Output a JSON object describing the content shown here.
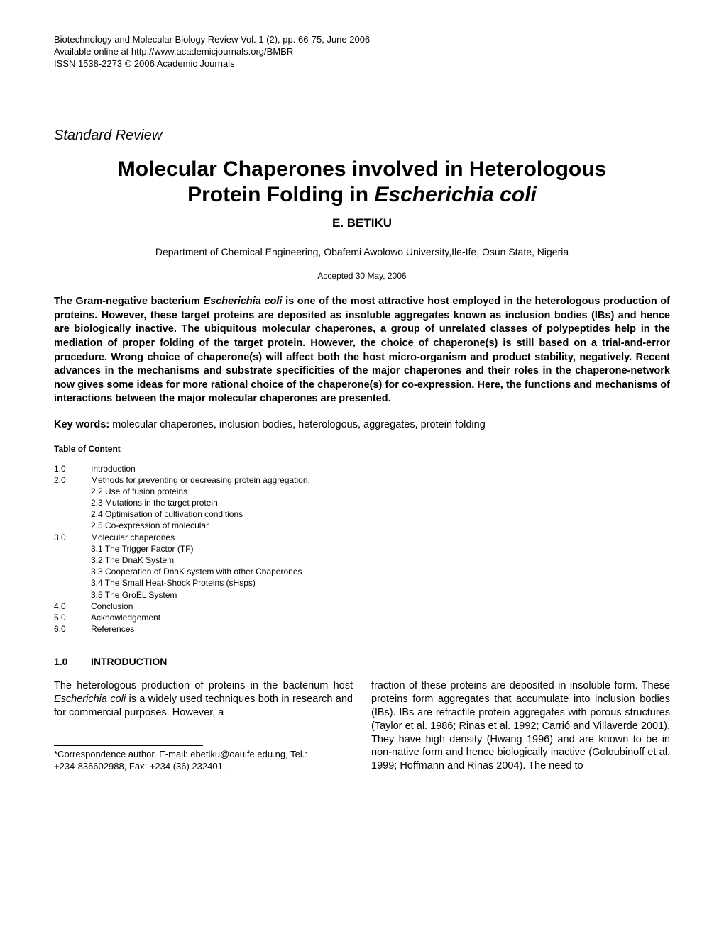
{
  "header": {
    "line1": "Biotechnology and Molecular Biology Review Vol. 1 (2), pp. 66-75, June 2006",
    "line2": "Available online at http://www.academicjournals.org/BMBR",
    "line3": "ISSN 1538-2273 © 2006 Academic Journals"
  },
  "section_type": "Standard Review",
  "title": {
    "line1": "Molecular Chaperones involved in Heterologous",
    "line2_pre": "Protein Folding in ",
    "line2_italic": "Escherichia coli"
  },
  "author": "E. BETIKU",
  "affiliation": "Department of Chemical Engineering, Obafemi Awolowo University,Ile-Ife, Osun State, Nigeria",
  "accepted": "Accepted 30 May, 2006",
  "abstract": {
    "part1": "The Gram-negative bacterium ",
    "italic1": "Escherichia coli",
    "part2": " is one of the most attractive host employed in the heterologous production of proteins. However, these target proteins are deposited as insoluble aggregates known as inclusion bodies (IBs) and hence are biologically inactive. The ubiquitous molecular chaperones, a group of unrelated classes of polypeptides help in the mediation of proper folding of the target protein. However, the choice of chaperone(s) is still based on a trial-and-error procedure. Wrong choice of chaperone(s) will affect both the host micro-organism and product stability, negatively. Recent advances in the mechanisms and substrate specificities of the major chaperones and their roles in the chaperone-network now gives some ideas for more rational choice of the chaperone(s) for co-expression. Here, the functions and mechanisms of interactions between the major molecular chaperones are presented."
  },
  "keywords": {
    "label": "Key words:",
    "text": " molecular chaperones, inclusion bodies, heterologous, aggregates, protein folding"
  },
  "toc_label": "Table of Content",
  "toc": [
    {
      "num": "1.0",
      "text": "Introduction"
    },
    {
      "num": "2.0",
      "text": "Methods for preventing or decreasing protein aggregation."
    },
    {
      "num": "",
      "text": "2.2 Use of fusion proteins",
      "sub": true
    },
    {
      "num": "",
      "text": "2.3 Mutations in the target protein",
      "sub": true
    },
    {
      "num": "",
      "text": "2.4 Optimisation of cultivation conditions",
      "sub": true
    },
    {
      "num": "",
      "text": "2.5 Co-expression of molecular",
      "sub": true
    },
    {
      "num": "3.0",
      "text": "Molecular chaperones"
    },
    {
      "num": "",
      "text": "3.1 The Trigger Factor (TF)",
      "sub": true
    },
    {
      "num": "",
      "text": "3.2 The DnaK System",
      "sub": true
    },
    {
      "num": "",
      "text": "3.3 Cooperation of DnaK system with other Chaperones",
      "sub": true
    },
    {
      "num": "",
      "text": "3.4 The Small Heat-Shock Proteins (sHsps)",
      "sub": true
    },
    {
      "num": "",
      "text": "3.5 The GroEL System",
      "sub": true
    },
    {
      "num": "4.0",
      "text": "Conclusion"
    },
    {
      "num": "5.0",
      "text": "Acknowledgement"
    },
    {
      "num": "6.0",
      "text": "References"
    }
  ],
  "intro_heading": {
    "num": "1.0",
    "text": "INTRODUCTION"
  },
  "body": {
    "col1": {
      "p1_pre": "The heterologous production of proteins in the bacterium host ",
      "p1_italic": "Escherichia coli",
      "p1_post": " is a widely used techniques both in research and for commercial  purposes.  However,  a"
    },
    "col2": {
      "p1": "fraction of these proteins are deposited in insoluble form. These proteins form aggregates that accumulate into inclusion bodies (IBs). IBs are refractile protein aggregates with porous structures (Taylor et al. 1986; Rinas et al. 1992; Carrió and Villaverde 2001). They have high density (Hwang 1996) and are known to be in non-native form and hence biologically inactive (Goloubinoff et al.  1999;  Hoffmann  and  Rinas  2004).  The  need  to"
    }
  },
  "footnote": {
    "line1": "*Correspondence author.  E-mail: ebetiku@oauife.edu.ng, Tel.:",
    "line2": "+234-836602988, Fax: +234 (36) 232401."
  }
}
